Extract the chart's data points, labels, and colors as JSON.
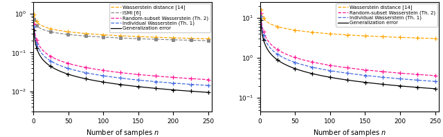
{
  "plot1": {
    "xlabel": "Number of samples $n$",
    "ylim": [
      0.003,
      2.0
    ],
    "xlim": [
      0,
      255
    ],
    "legend_labels": [
      "Wasserstein distance [14]",
      "ISMI [6]",
      "Random-subset Wasserstein (Th. 2)",
      "Individual Wasserstein (Th. 1)",
      "Generalization error"
    ],
    "colors": [
      "#FFA500",
      "#888888",
      "#FF1493",
      "#4169E1",
      "#000000"
    ],
    "wass14": {
      "a": 0.95,
      "b": 0.26
    },
    "ismi": {
      "a": 0.72,
      "b": 0.23
    },
    "rand_wass": {
      "a": 0.55,
      "b": 0.6
    },
    "ind_wass": {
      "a": 0.46,
      "b": 0.63
    },
    "gen_err": {
      "a": 0.38,
      "b": 0.67
    }
  },
  "plot2": {
    "xlabel": "Number of samples $n$",
    "ylim": [
      0.045,
      25.0
    ],
    "xlim": [
      0,
      255
    ],
    "legend_labels": [
      "Wasserstein distance [14]",
      "Random-subset Wasserstein (Th. 2)",
      "Individual Wasserstein (Th. 1)",
      "Generalization error"
    ],
    "colors": [
      "#FFA500",
      "#FF1493",
      "#4169E1",
      "#000000"
    ],
    "wass14": {
      "a": 16.0,
      "b": 0.3
    },
    "rand_wass": {
      "a": 13.0,
      "b": 0.65
    },
    "ind_wass": {
      "a": 11.0,
      "b": 0.68
    },
    "gen_err": {
      "a": 9.0,
      "b": 0.72
    }
  }
}
